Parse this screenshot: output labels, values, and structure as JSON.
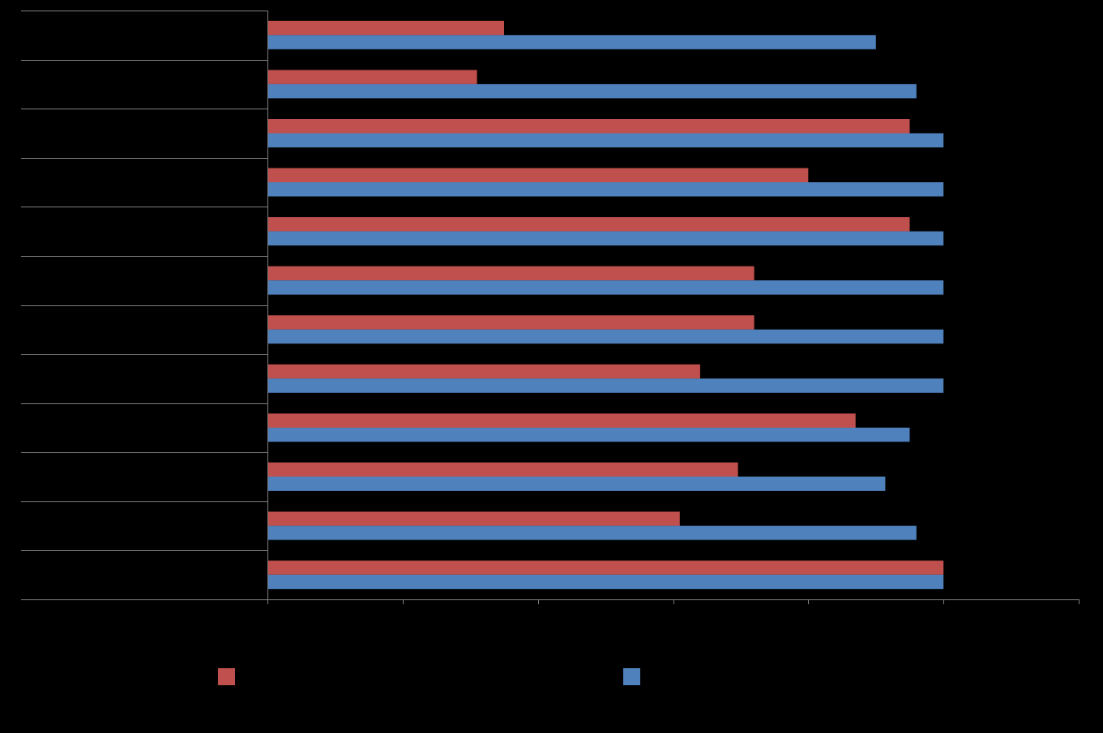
{
  "chart_data": {
    "type": "bar",
    "orientation": "horizontal",
    "categories": [
      "",
      "",
      "",
      "",
      "",
      "",
      "",
      "",
      "",
      "",
      "",
      ""
    ],
    "series": [
      {
        "values": [
          1.75,
          1.55,
          4.75,
          4.0,
          4.75,
          3.6,
          3.6,
          3.2,
          4.35,
          3.48,
          3.05,
          5.0
        ],
        "color": "#c0504d"
      },
      {
        "values": [
          4.5,
          4.8,
          5.0,
          5.0,
          5.0,
          5.0,
          5.0,
          5.0,
          4.75,
          4.57,
          4.8,
          5.0
        ],
        "color": "#4f81bd"
      }
    ],
    "xlim": [
      0,
      6
    ],
    "x_ticks": [
      0,
      1,
      2,
      3,
      4,
      5,
      6
    ],
    "grid": true,
    "legend_position": "bottom",
    "background": "#000000",
    "grid_color": "#7f7f7f"
  }
}
